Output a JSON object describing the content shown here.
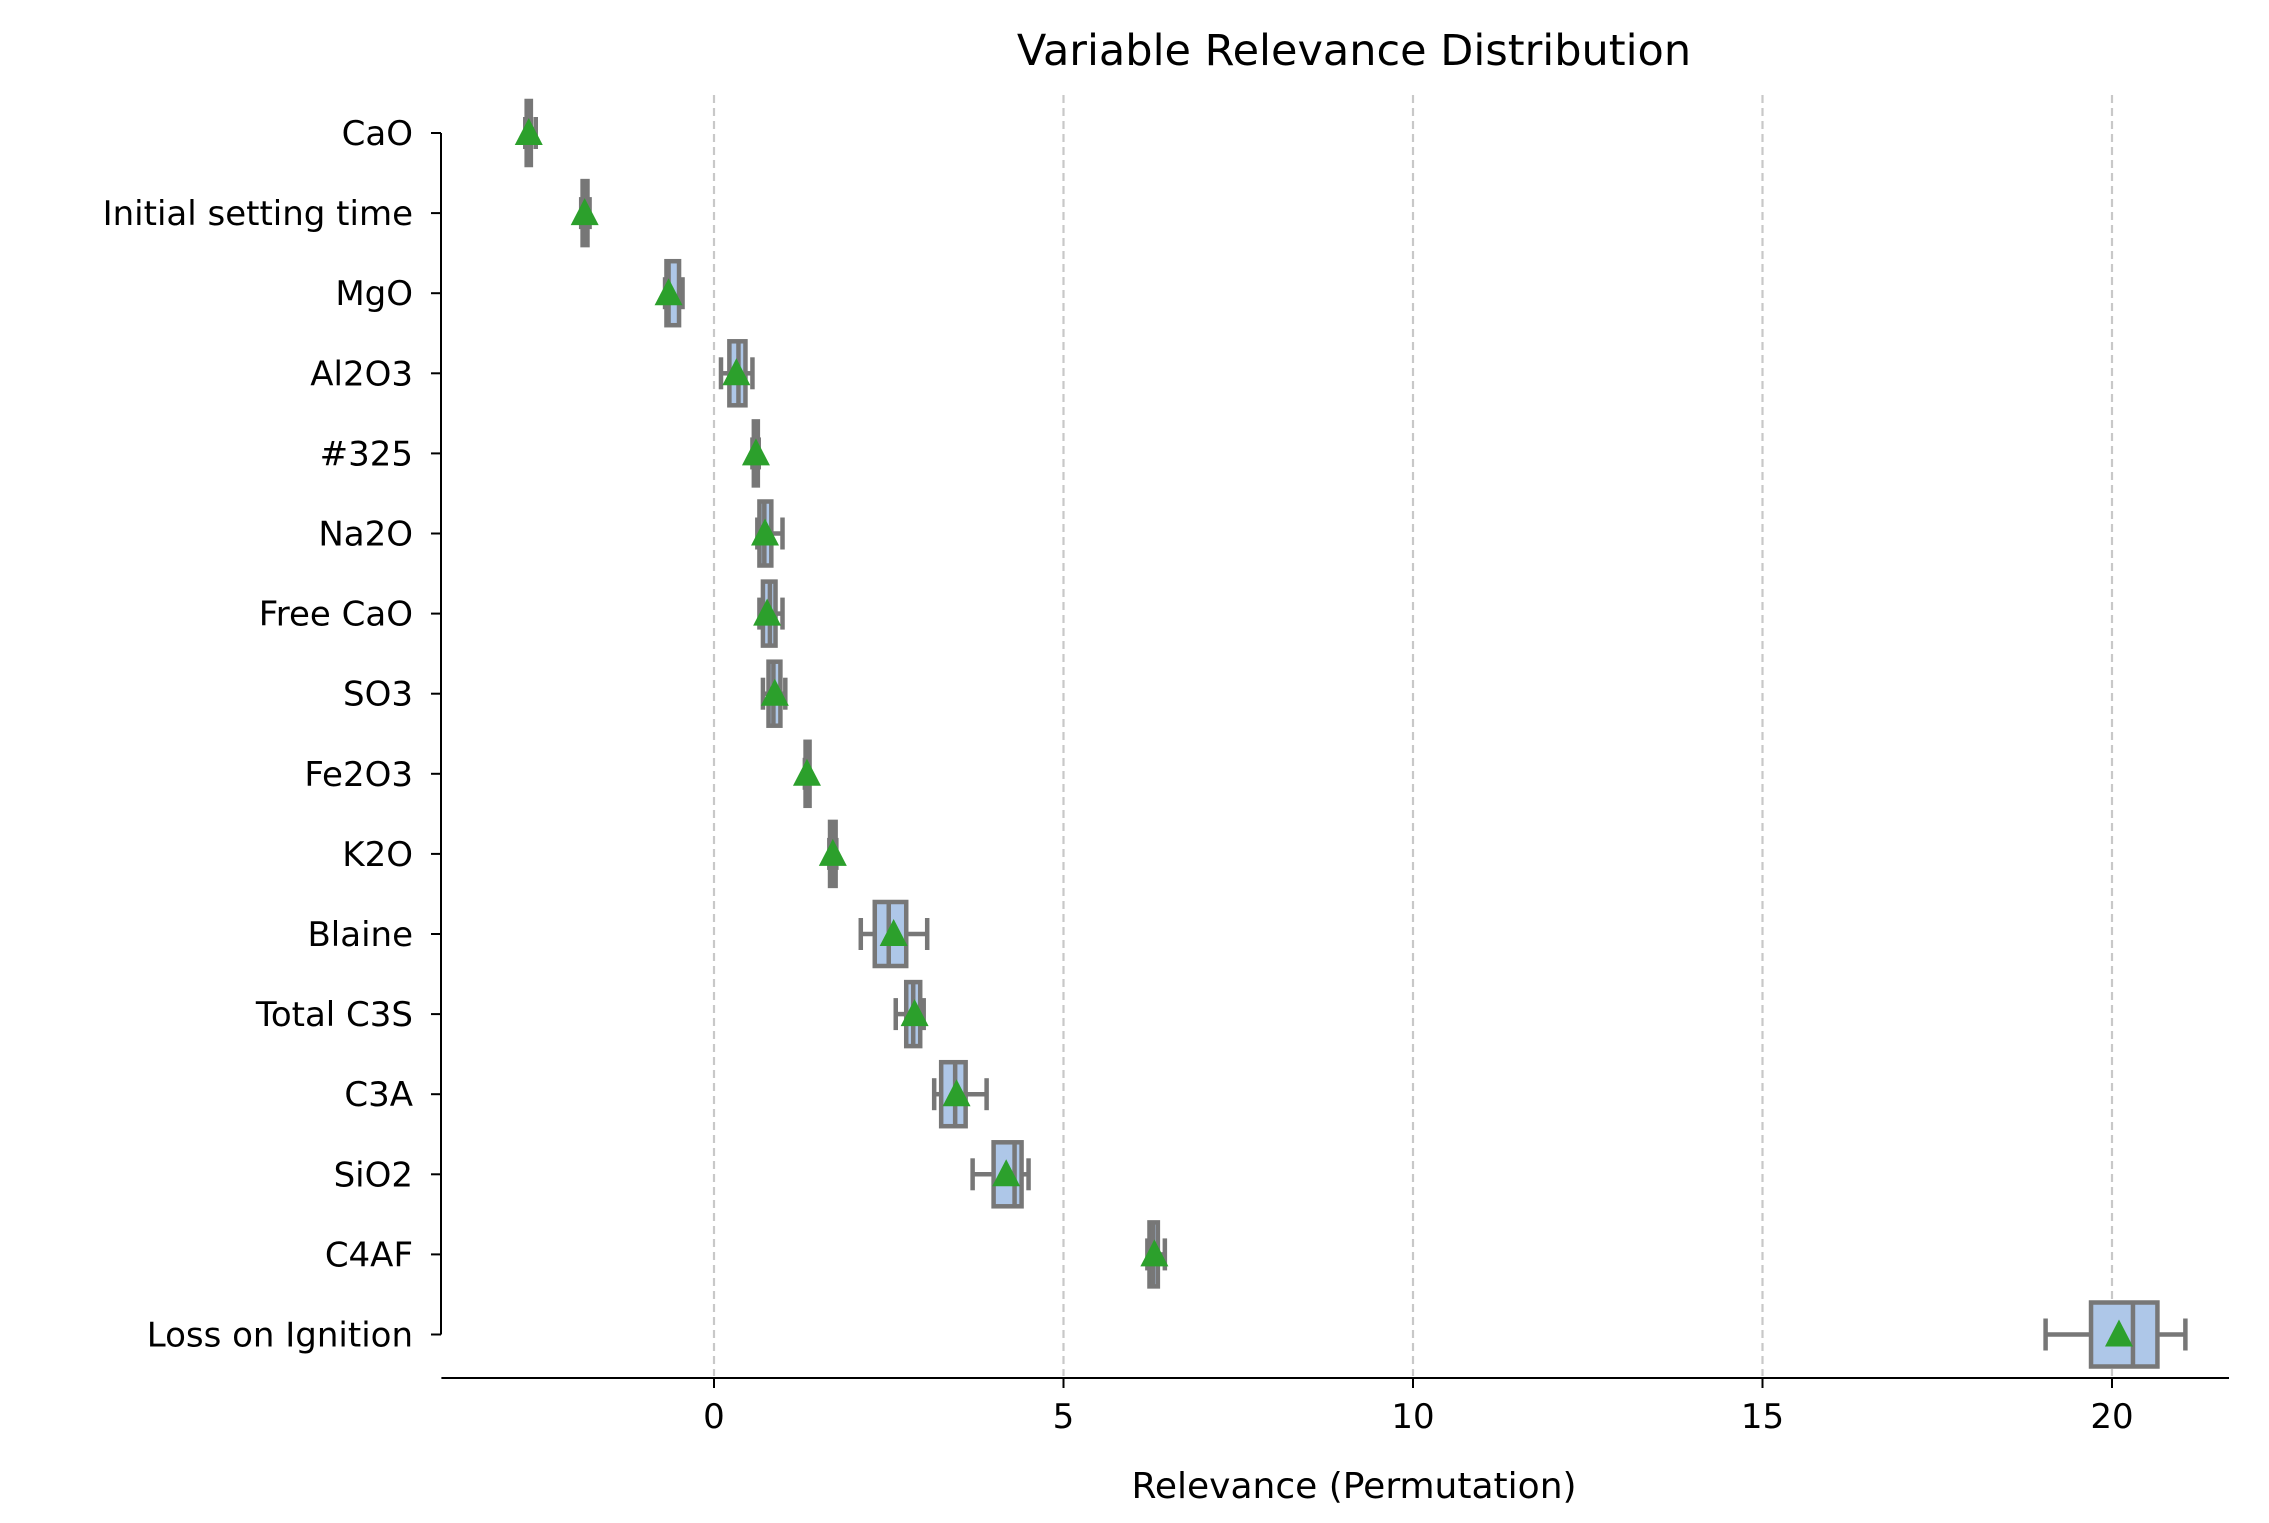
{
  "chart_data": {
    "type": "boxplot",
    "orientation": "horizontal",
    "title": "Variable Relevance Distribution",
    "xlabel": "Relevance (Permutation)",
    "ylabel": "",
    "xlim": [
      -3.9,
      21.3
    ],
    "xticks": [
      0,
      5,
      10,
      15,
      20
    ],
    "grid": "x-dashed",
    "categories": [
      "CaO",
      "Initial setting time",
      "MgO",
      "Al2O3",
      "#325",
      "Na2O",
      "Free CaO",
      "SO3",
      "Fe2O3",
      "K2O",
      "Blaine",
      "Total C3S",
      "C3A",
      "SiO2",
      "C4AF",
      "Loss on Ignition"
    ],
    "boxes": [
      {
        "whislo": -2.7,
        "q1": -2.68,
        "med": -2.65,
        "q3": -2.62,
        "whishi": -2.55,
        "mean": -2.65
      },
      {
        "whislo": -1.9,
        "q1": -1.88,
        "med": -1.85,
        "q3": -1.81,
        "whishi": -1.78,
        "mean": -1.85
      },
      {
        "whislo": -0.7,
        "q1": -0.68,
        "med": -0.65,
        "q3": -0.5,
        "whishi": -0.45,
        "mean": -0.65
      },
      {
        "whislo": 0.1,
        "q1": 0.22,
        "med": 0.35,
        "q3": 0.45,
        "whishi": 0.55,
        "mean": 0.32
      },
      {
        "whislo": 0.55,
        "q1": 0.57,
        "med": 0.6,
        "q3": 0.62,
        "whishi": 0.64,
        "mean": 0.6
      },
      {
        "whislo": 0.62,
        "q1": 0.65,
        "med": 0.72,
        "q3": 0.82,
        "whishi": 0.98,
        "mean": 0.73
      },
      {
        "whislo": 0.65,
        "q1": 0.7,
        "med": 0.8,
        "q3": 0.88,
        "whishi": 0.98,
        "mean": 0.76
      },
      {
        "whislo": 0.7,
        "q1": 0.78,
        "med": 0.85,
        "q3": 0.95,
        "whishi": 1.02,
        "mean": 0.87
      },
      {
        "whislo": 1.3,
        "q1": 1.31,
        "med": 1.33,
        "q3": 1.34,
        "whishi": 1.35,
        "mean": 1.33
      },
      {
        "whislo": 1.65,
        "q1": 1.66,
        "med": 1.7,
        "q3": 1.74,
        "whishi": 1.75,
        "mean": 1.7
      },
      {
        "whislo": 2.1,
        "q1": 2.3,
        "med": 2.5,
        "q3": 2.75,
        "whishi": 3.05,
        "mean": 2.57
      },
      {
        "whislo": 2.6,
        "q1": 2.75,
        "med": 2.85,
        "q3": 2.95,
        "whishi": 3.0,
        "mean": 2.87
      },
      {
        "whislo": 3.15,
        "q1": 3.25,
        "med": 3.45,
        "q3": 3.6,
        "whishi": 3.9,
        "mean": 3.47
      },
      {
        "whislo": 3.7,
        "q1": 4.0,
        "med": 4.3,
        "q3": 4.4,
        "whishi": 4.5,
        "mean": 4.18
      },
      {
        "whislo": 6.2,
        "q1": 6.23,
        "med": 6.28,
        "q3": 6.35,
        "whishi": 6.45,
        "mean": 6.3
      },
      {
        "whislo": 19.05,
        "q1": 19.7,
        "med": 20.3,
        "q3": 20.65,
        "whishi": 21.05,
        "mean": 20.1
      }
    ],
    "colors": {
      "box_fill": "#aec7e8",
      "box_edge": "#777777",
      "mean_marker": "#2ca02c",
      "grid": "#c8c8c8",
      "axis": "#000000"
    }
  }
}
